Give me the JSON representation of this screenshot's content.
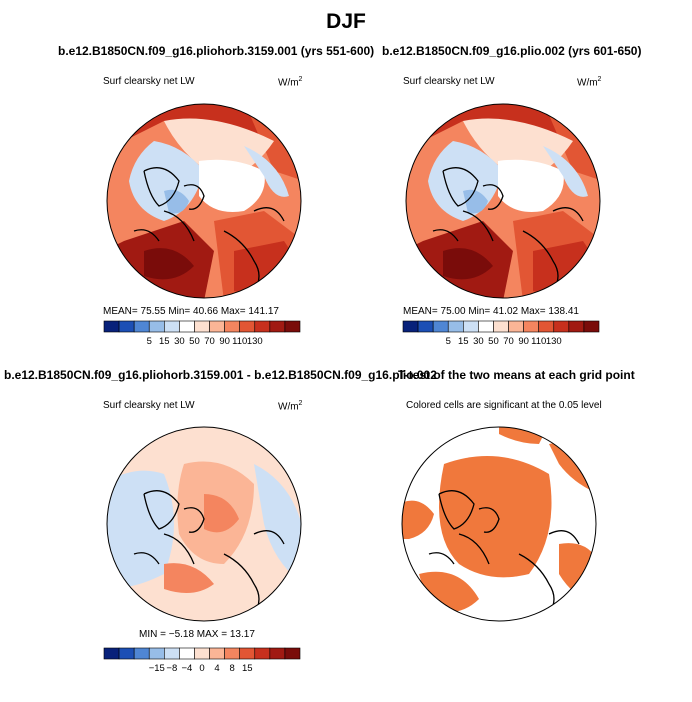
{
  "figure": {
    "title": "DJF",
    "panels": [
      {
        "title": "b.e12.B1850CN.f09_g16.pliohorb.3159.001 (yrs 551-600)",
        "var_label": "Surf clearsky net LW",
        "units": "W/m",
        "units_sup": "2",
        "stats": "MEAN=  75.55   Min=  40.66   Max= 141.17",
        "colorbar_ticks": [
          "5",
          "15",
          "30",
          "50",
          "70",
          "90",
          "110",
          "130"
        ]
      },
      {
        "title": "b.e12.B1850CN.f09_g16.plio.002 (yrs 601-650)",
        "var_label": "Surf clearsky net LW",
        "units": "W/m",
        "units_sup": "2",
        "stats": "MEAN=  75.00   Min=  41.02   Max= 138.41",
        "colorbar_ticks": [
          "5",
          "15",
          "30",
          "50",
          "70",
          "90",
          "110",
          "130"
        ]
      },
      {
        "title": "b.e12.B1850CN.f09_g16.pliohorb.3159.001 - b.e12.B1850CN.f09_g16.plio.002",
        "var_label": "Surf clearsky net LW",
        "units": "W/m",
        "units_sup": "2",
        "stats": "MIN =  −5.18  MAX =  13.17",
        "colorbar_ticks": [
          "−15",
          "−8",
          "−4",
          "0",
          "4",
          "8",
          "15"
        ]
      },
      {
        "title": "T-test of the two means at each grid point",
        "var_label": "Colored cells are significant at the 0.05 level"
      }
    ]
  },
  "colors": {
    "abs_scale": [
      "#08217a",
      "#1c4fb5",
      "#4f86d4",
      "#97bde8",
      "#cde0f5",
      "#ffffff",
      "#fde0d0",
      "#fbb596",
      "#f4855f",
      "#e25634",
      "#c7301d",
      "#a11a12",
      "#7a0c0a"
    ],
    "diff_scale": [
      "#08217a",
      "#1c4fb5",
      "#4f86d4",
      "#97bde8",
      "#cde0f5",
      "#ffffff",
      "#fde0d0",
      "#fbb596",
      "#f4855f",
      "#e25634",
      "#c7301d",
      "#a11a12",
      "#7a0c0a"
    ],
    "ttest": "#f0783c"
  },
  "chart_data": [
    {
      "type": "heatmap",
      "title": "b.e12.B1850CN.f09_g16.pliohorb.3159.001 (yrs 551-600)",
      "variable": "Surf clearsky net LW",
      "units": "W/m2",
      "mean": 75.55,
      "min": 40.66,
      "max": 141.17,
      "levels": [
        5,
        15,
        30,
        50,
        70,
        90,
        110,
        130
      ]
    },
    {
      "type": "heatmap",
      "title": "b.e12.B1850CN.f09_g16.plio.002 (yrs 601-650)",
      "variable": "Surf clearsky net LW",
      "units": "W/m2",
      "mean": 75.0,
      "min": 41.02,
      "max": 138.41,
      "levels": [
        5,
        15,
        30,
        50,
        70,
        90,
        110,
        130
      ]
    },
    {
      "type": "heatmap",
      "title": "b.e12.B1850CN.f09_g16.pliohorb.3159.001 - b.e12.B1850CN.f09_g16.plio.002",
      "variable": "Surf clearsky net LW",
      "units": "W/m2",
      "min": -5.18,
      "max": 13.17,
      "levels": [
        -15,
        -8,
        -4,
        0,
        4,
        8,
        15
      ]
    },
    {
      "type": "heatmap",
      "title": "T-test of the two means at each grid point",
      "note": "Colored cells are significant at the 0.05 level"
    }
  ]
}
